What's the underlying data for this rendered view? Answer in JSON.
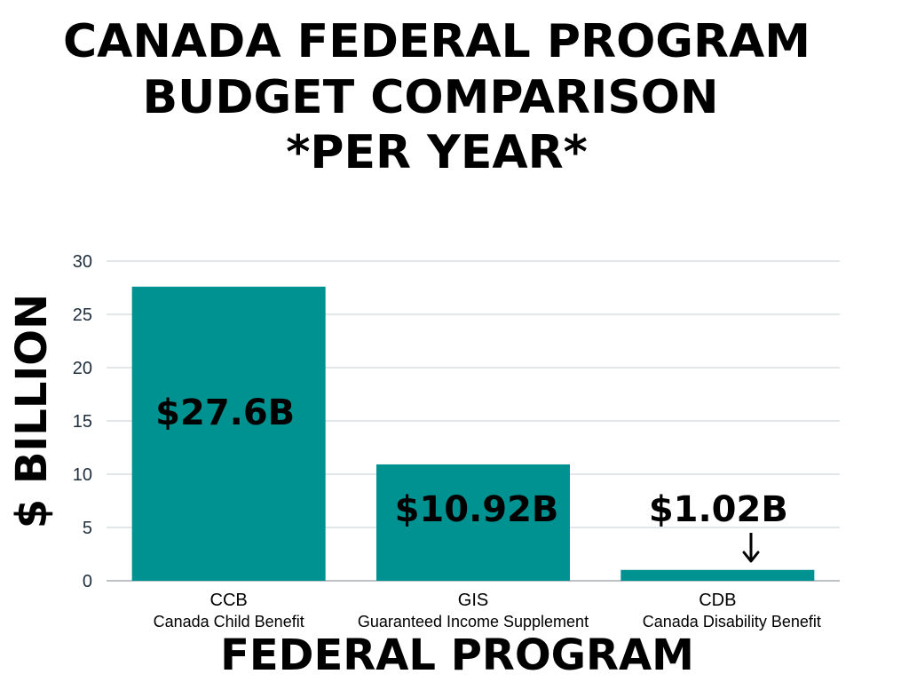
{
  "title_lines": [
    "CANADA FEDERAL PROGRAM",
    "BUDGET COMPARISON",
    "*PER YEAR*"
  ],
  "chart_data": {
    "type": "bar",
    "categories": [
      "CCB",
      "GIS",
      "CDB"
    ],
    "category_descriptions": [
      "Canada Child Benefit",
      "Guaranteed Income Supplement",
      "Canada Disability Benefit"
    ],
    "values": [
      27.6,
      10.92,
      1.02
    ],
    "data_labels": [
      "$27.6B",
      "$10.92B",
      "$1.02B"
    ],
    "xlabel": "FEDERAL PROGRAM",
    "ylabel": "$ BILLION",
    "ylim": [
      0,
      30
    ],
    "yticks": [
      0,
      5,
      10,
      15,
      20,
      25,
      30
    ],
    "grid": true,
    "bar_color": "#009191"
  }
}
